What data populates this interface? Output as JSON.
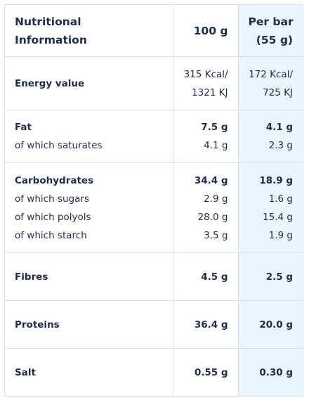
{
  "header": {
    "label": [
      "Nutritional",
      "Information"
    ],
    "per100": [
      "100 g"
    ],
    "perbar": [
      "Per bar",
      "(55 g)"
    ]
  },
  "rows": [
    {
      "lines": [
        {
          "label": "Energy value",
          "bold": true,
          "per100": [
            "315 Kcal/",
            "1321 KJ"
          ],
          "perbar": [
            "172 Kcal/",
            "725 KJ"
          ]
        }
      ]
    },
    {
      "lines": [
        {
          "label": "Fat",
          "bold": true,
          "per100": [
            "7.5 g"
          ],
          "perbar": [
            "4.1 g"
          ]
        },
        {
          "label": "of which saturates",
          "bold": false,
          "per100": [
            "4.1 g"
          ],
          "perbar": [
            "2.3 g"
          ]
        }
      ]
    },
    {
      "lines": [
        {
          "label": "Carbohydrates",
          "bold": true,
          "per100": [
            "34.4 g"
          ],
          "perbar": [
            "18.9 g"
          ]
        },
        {
          "label": "of which sugars",
          "bold": false,
          "per100": [
            "2.9 g"
          ],
          "perbar": [
            "1.6 g"
          ]
        },
        {
          "label": "of which polyols",
          "bold": false,
          "per100": [
            "28.0 g"
          ],
          "perbar": [
            "15.4 g"
          ]
        },
        {
          "label": "of which starch",
          "bold": false,
          "per100": [
            "3.5 g"
          ],
          "perbar": [
            "1.9 g"
          ]
        }
      ]
    },
    {
      "lines": [
        {
          "label": "Fibres",
          "bold": true,
          "per100": [
            "4.5 g"
          ],
          "perbar": [
            "2.5 g"
          ]
        }
      ]
    },
    {
      "lines": [
        {
          "label": "Proteins",
          "bold": true,
          "per100": [
            "36.4 g"
          ],
          "perbar": [
            "20.0 g"
          ]
        }
      ]
    },
    {
      "lines": [
        {
          "label": "Salt",
          "bold": true,
          "per100": [
            "0.55 g"
          ],
          "perbar": [
            "0.30 g"
          ]
        }
      ]
    }
  ]
}
